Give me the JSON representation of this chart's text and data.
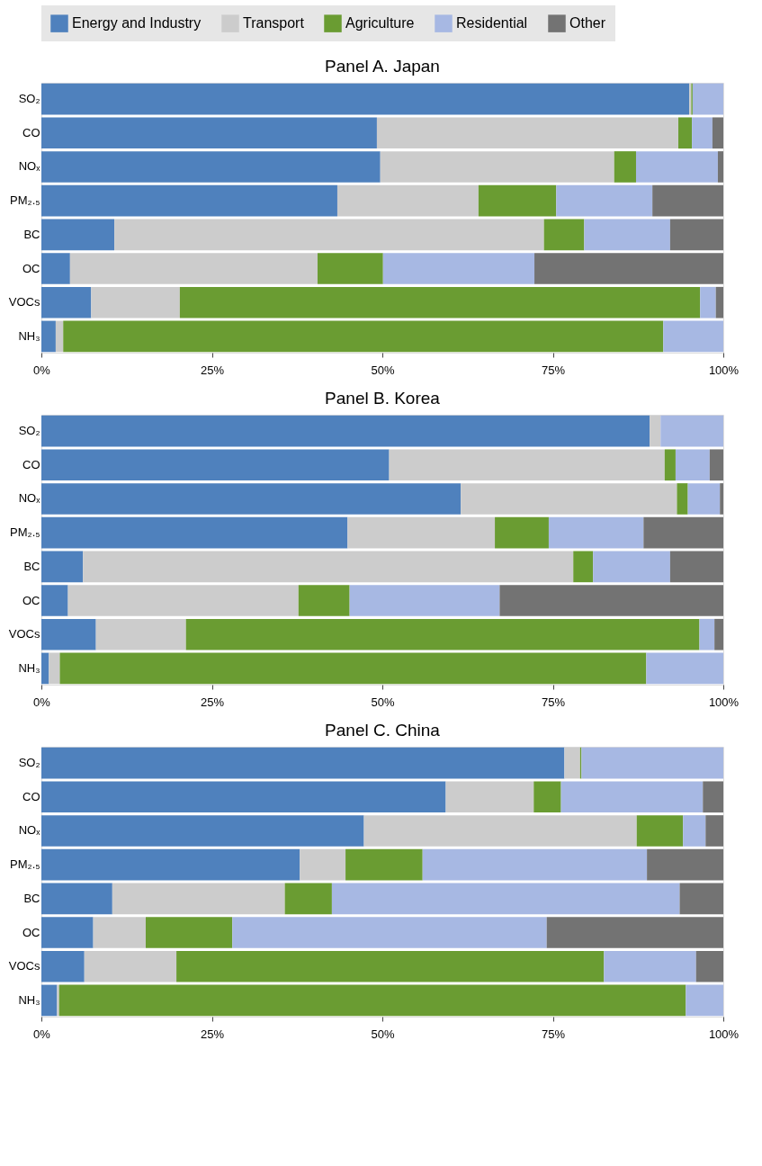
{
  "chart_data": [
    {
      "type": "bar",
      "title": "Panel A. Japan",
      "orientation": "horizontal",
      "stacked": true,
      "legend": "top",
      "grid": false,
      "categories": [
        "SO₂",
        "CO",
        "NOₓ",
        "PM₂.₅",
        "BC",
        "OC",
        "VOCs",
        "NH₃"
      ],
      "xlim": [
        0,
        100
      ],
      "xticks": [
        {
          "value": 0,
          "label": "0%"
        },
        {
          "value": 25,
          "label": "25%"
        },
        {
          "value": 50,
          "label": "50%"
        },
        {
          "value": 75,
          "label": "75%"
        },
        {
          "value": 100,
          "label": "100%"
        }
      ],
      "series": [
        {
          "name": "Energy and Industry",
          "color": "#4f81bd",
          "values": [
            95.0,
            49.2,
            49.7,
            43.4,
            10.7,
            4.2,
            7.3,
            2.1
          ]
        },
        {
          "name": "Transport",
          "color": "#cccccc",
          "values": [
            0.3,
            44.2,
            34.3,
            20.7,
            63.0,
            36.3,
            13.0,
            1.1
          ]
        },
        {
          "name": "Agriculture",
          "color": "#6a9c32",
          "values": [
            0.2,
            2.0,
            3.2,
            11.4,
            5.9,
            9.6,
            76.3,
            88.0
          ]
        },
        {
          "name": "Residential",
          "color": "#a7b8e3",
          "values": [
            4.5,
            3.0,
            12.0,
            14.1,
            12.6,
            22.2,
            2.3,
            8.8
          ]
        },
        {
          "name": "Other",
          "color": "#737373",
          "values": [
            null,
            1.6,
            0.8,
            10.4,
            7.8,
            27.7,
            1.1,
            null
          ]
        }
      ]
    },
    {
      "type": "bar",
      "title": "Panel B. Korea",
      "orientation": "horizontal",
      "stacked": true,
      "legend": false,
      "grid": false,
      "categories": [
        "SO₂",
        "CO",
        "NOₓ",
        "PM₂.₅",
        "BC",
        "OC",
        "VOCs",
        "NH₃"
      ],
      "xlim": [
        0,
        100
      ],
      "xticks": [
        {
          "value": 0,
          "label": "0%"
        },
        {
          "value": 25,
          "label": "25%"
        },
        {
          "value": 50,
          "label": "50%"
        },
        {
          "value": 75,
          "label": "75%"
        },
        {
          "value": 100,
          "label": "100%"
        }
      ],
      "series": [
        {
          "name": "Energy and Industry",
          "color": "#4f81bd",
          "values": [
            89.2,
            51.0,
            61.5,
            44.9,
            6.1,
            3.9,
            8.0,
            1.1
          ]
        },
        {
          "name": "Transport",
          "color": "#cccccc",
          "values": [
            1.6,
            40.4,
            31.7,
            21.6,
            71.9,
            33.8,
            13.2,
            1.6
          ]
        },
        {
          "name": "Agriculture",
          "color": "#6a9c32",
          "values": [
            null,
            1.6,
            1.6,
            7.9,
            2.9,
            7.5,
            75.3,
            86.0
          ]
        },
        {
          "name": "Residential",
          "color": "#a7b8e3",
          "values": [
            9.2,
            5.0,
            4.7,
            13.9,
            11.3,
            22.0,
            2.2,
            11.3
          ]
        },
        {
          "name": "Other",
          "color": "#737373",
          "values": [
            null,
            2.0,
            0.5,
            11.7,
            7.8,
            32.8,
            1.3,
            null
          ]
        }
      ]
    },
    {
      "type": "bar",
      "title": "Panel C. China",
      "orientation": "horizontal",
      "stacked": true,
      "legend": false,
      "grid": false,
      "categories": [
        "SO₂",
        "CO",
        "NOₓ",
        "PM₂.₅",
        "BC",
        "OC",
        "VOCs",
        "NH₃"
      ],
      "xlim": [
        0,
        100
      ],
      "xticks": [
        {
          "value": 0,
          "label": "0%"
        },
        {
          "value": 25,
          "label": "25%"
        },
        {
          "value": 50,
          "label": "50%"
        },
        {
          "value": 75,
          "label": "75%"
        },
        {
          "value": 100,
          "label": "100%"
        }
      ],
      "series": [
        {
          "name": "Energy and Industry",
          "color": "#4f81bd",
          "values": [
            76.7,
            59.3,
            47.3,
            37.9,
            10.4,
            7.6,
            6.3,
            2.3
          ]
        },
        {
          "name": "Transport",
          "color": "#cccccc",
          "values": [
            2.3,
            12.9,
            40.0,
            6.7,
            25.3,
            7.7,
            13.5,
            0.3
          ]
        },
        {
          "name": "Agriculture",
          "color": "#6a9c32",
          "values": [
            0.2,
            4.0,
            6.8,
            11.3,
            6.9,
            12.7,
            62.7,
            91.9
          ]
        },
        {
          "name": "Residential",
          "color": "#a7b8e3",
          "values": [
            20.8,
            20.8,
            3.3,
            32.9,
            51.0,
            46.1,
            13.5,
            5.5
          ]
        },
        {
          "name": "Other",
          "color": "#737373",
          "values": [
            null,
            3.0,
            2.6,
            11.2,
            6.4,
            25.9,
            4.0,
            null
          ]
        }
      ]
    }
  ]
}
